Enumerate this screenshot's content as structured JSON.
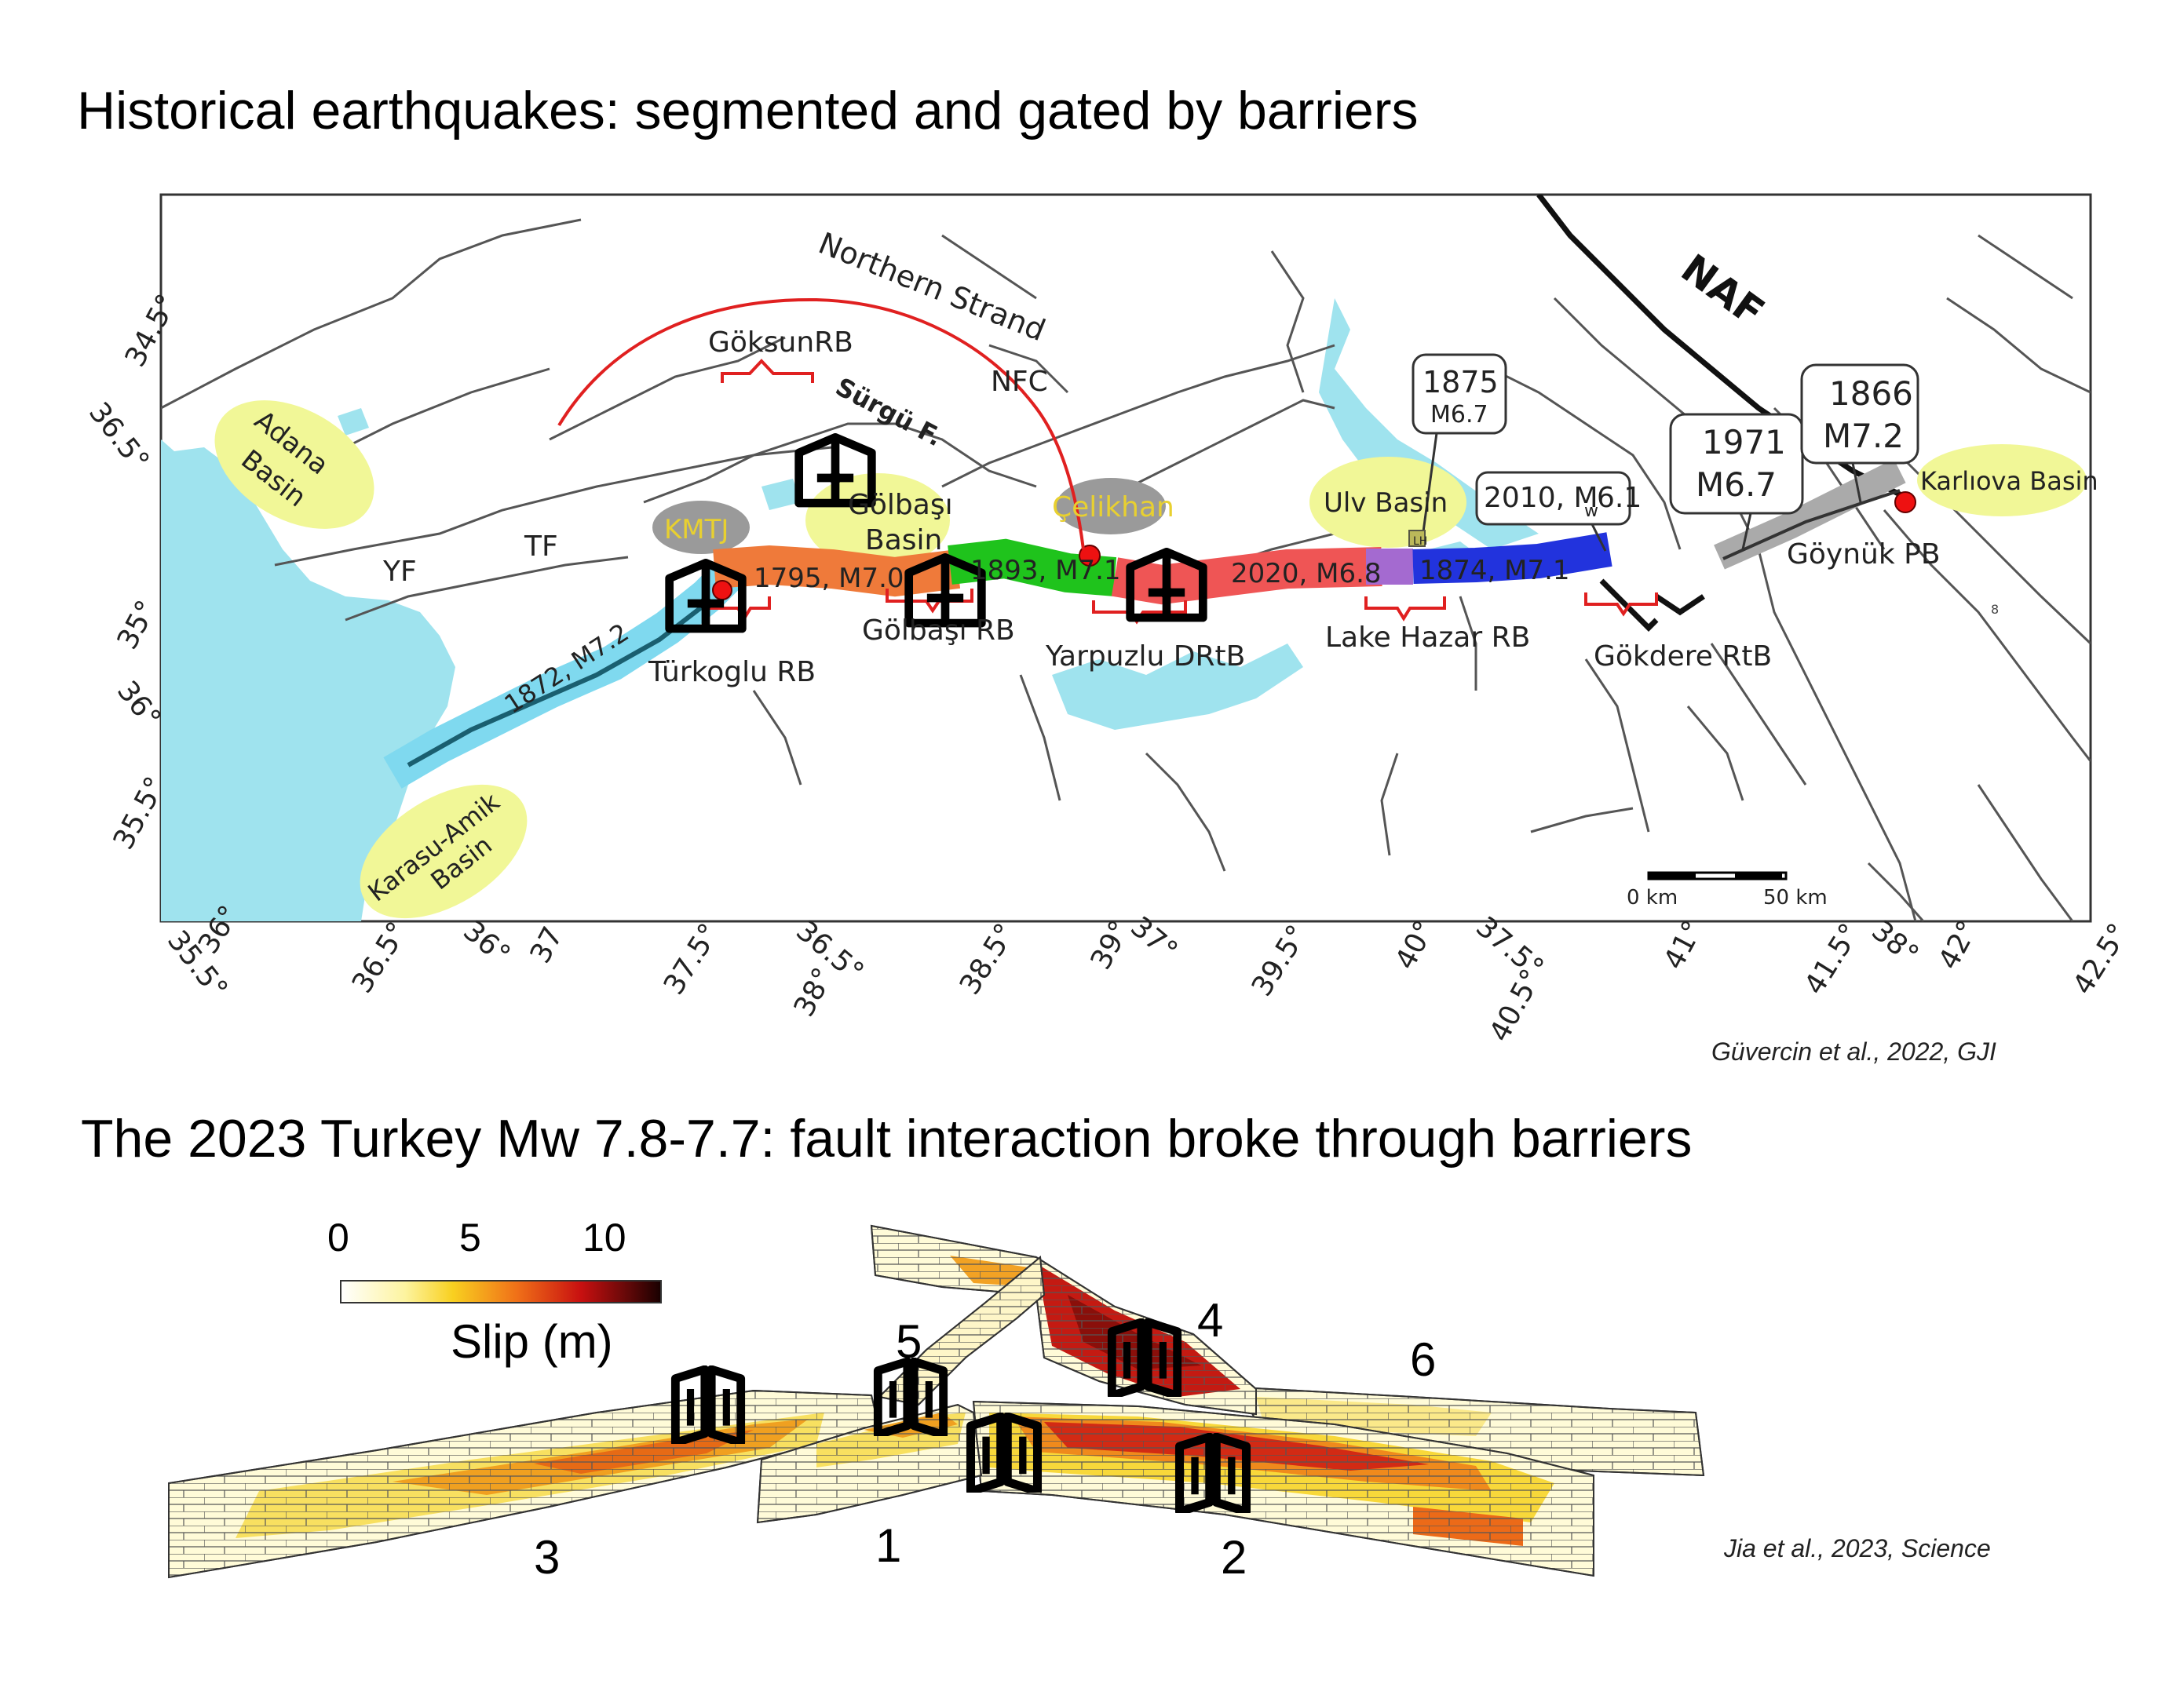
{
  "titles": {
    "top": "Historical earthquakes: segmented and gated by barriers",
    "bottom": "The 2023 Turkey Mw 7.8-7.7: fault interaction broke through barriers"
  },
  "citations": {
    "top": "Güvercin et al., 2022, GJI",
    "bottom": "Jia et al., 2023, Science"
  },
  "map": {
    "lat_labels": [
      "34.5°",
      "36.5°",
      "35°",
      "36°",
      "35.5°"
    ],
    "lon_labels": [
      "35.5°",
      "36°",
      "36.5°",
      "36°",
      "37",
      "37.5°",
      "38°",
      "36.5°",
      "38.5°",
      "39°",
      "37°",
      "39.5°",
      "40°",
      "40.5°",
      "37.5°",
      "41°",
      "41.5°",
      "38°",
      "42°",
      "42.5°"
    ],
    "faults": {
      "northern_strand": "Northern Strand",
      "goksun": "GöksunRB",
      "surgu": "Sürgü F.",
      "nfc": "NFC",
      "naf": "NAF",
      "yf": "YF",
      "tf": "TF"
    },
    "basins": {
      "adana": [
        "Adana",
        "Basin"
      ],
      "karasu": [
        "Karasu-Amik",
        "Basin"
      ],
      "golbasi": [
        "Gölbaşı",
        "Basin"
      ],
      "ulv": "Ulv Basin",
      "karliova": "Karlıova Basin",
      "kmtj": "KMTJ",
      "celikhan": "Çelikhan"
    },
    "ruptures": {
      "r1872": "1872, M7.2",
      "r1795": "1795, M7.0",
      "r1893": "1893, M7.1",
      "r2020": "2020, M6.8",
      "r1874": "1874, M7.1"
    },
    "callouts": {
      "c1875": [
        "1875",
        "M6.7"
      ],
      "c2010": [
        "2010, M",
        "w",
        "6.1"
      ],
      "c1971": [
        "1971",
        "M6.7"
      ],
      "c1866": [
        "1866",
        "M7.2"
      ]
    },
    "barriers": {
      "turkoglu": "Türkoglu RB",
      "golbasi_rb": "Gölbaşı RB",
      "yarpuzlu": "Yarpuzlu DRtB",
      "lake_hazar": "Lake Hazar RB",
      "gokdere": "Gökdere RtB",
      "goynuk": "Göynük PB"
    },
    "scale": {
      "zero": "0 km",
      "fifty": "50 km"
    },
    "small_labels": {
      "lh": "LH",
      "eight": "8"
    }
  },
  "slip_model": {
    "colorbar": {
      "ticks": [
        "0",
        "5",
        "10"
      ],
      "label": "Slip (m)",
      "range": [
        0,
        12
      ]
    },
    "segments": [
      "1",
      "2",
      "3",
      "4",
      "5",
      "6"
    ]
  },
  "colors": {
    "sea": "#9fe3ee",
    "basin": "#f1f797",
    "rupture_1872": "#7fd9ef",
    "rupture_1795": "#ef7a3a",
    "rupture_1893": "#1fc31c",
    "rupture_2020": "#ef5555",
    "rupture_1874": "#2233dd",
    "barrier": "#e02020",
    "epicenter": "#ee1111"
  },
  "icons": [
    "gate-icon"
  ]
}
